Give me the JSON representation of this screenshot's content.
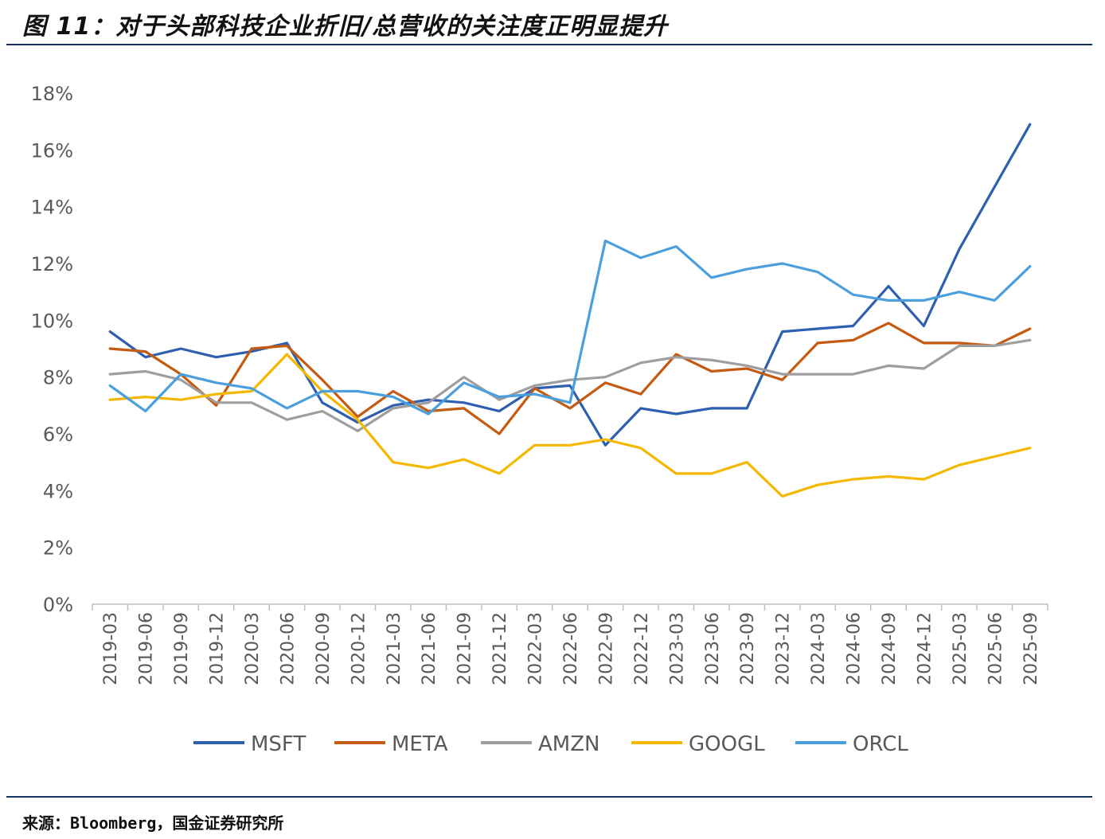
{
  "title": "图 11：对于头部科技企业折旧/总营收的关注度正明显提升",
  "source": "来源：Bloomberg，国金证券研究所",
  "chart_data": {
    "type": "line",
    "title": "",
    "xlabel": "",
    "ylabel": "",
    "ylim": [
      0,
      18
    ],
    "yticks": [
      0,
      2,
      4,
      6,
      8,
      10,
      12,
      14,
      16,
      18
    ],
    "ytick_labels": [
      "0%",
      "2%",
      "4%",
      "6%",
      "8%",
      "10%",
      "12%",
      "14%",
      "16%",
      "18%"
    ],
    "grid": false,
    "legend_position": "bottom",
    "categories": [
      "2019-03",
      "2019-06",
      "2019-09",
      "2019-12",
      "2020-03",
      "2020-06",
      "2020-09",
      "2020-12",
      "2021-03",
      "2021-06",
      "2021-09",
      "2021-12",
      "2022-03",
      "2022-06",
      "2022-09",
      "2022-12",
      "2023-03",
      "2023-06",
      "2023-09",
      "2023-12",
      "2024-03",
      "2024-06",
      "2024-09",
      "2024-12",
      "2025-03",
      "2025-06",
      "2025-09"
    ],
    "series": [
      {
        "name": "MSFT",
        "color": "#2e5fb0",
        "values": [
          9.6,
          8.7,
          9.0,
          8.7,
          8.9,
          9.2,
          7.1,
          6.4,
          7.0,
          7.2,
          7.1,
          6.8,
          7.6,
          7.7,
          5.6,
          6.9,
          6.7,
          6.9,
          6.9,
          9.6,
          9.7,
          9.8,
          11.2,
          9.8,
          12.5,
          14.7,
          16.9
        ]
      },
      {
        "name": "META",
        "color": "#c55a11",
        "values": [
          9.0,
          8.9,
          8.1,
          7.0,
          9.0,
          9.1,
          7.9,
          6.6,
          7.5,
          6.8,
          6.9,
          6.0,
          7.6,
          6.9,
          7.8,
          7.4,
          8.8,
          8.2,
          8.3,
          7.9,
          9.2,
          9.3,
          9.9,
          9.2,
          9.2,
          9.1,
          9.7
        ]
      },
      {
        "name": "AMZN",
        "color": "#9e9e9e",
        "values": [
          8.1,
          8.2,
          7.9,
          7.1,
          7.1,
          6.5,
          6.8,
          6.1,
          6.9,
          7.1,
          8.0,
          7.2,
          7.7,
          7.9,
          8.0,
          8.5,
          8.7,
          8.6,
          8.4,
          8.1,
          8.1,
          8.1,
          8.4,
          8.3,
          9.1,
          9.1,
          9.3
        ]
      },
      {
        "name": "GOOGL",
        "color": "#f5b800",
        "values": [
          7.2,
          7.3,
          7.2,
          7.4,
          7.5,
          8.8,
          7.5,
          6.5,
          5.0,
          4.8,
          5.1,
          4.6,
          5.6,
          5.6,
          5.8,
          5.5,
          4.6,
          4.6,
          5.0,
          3.8,
          4.2,
          4.4,
          4.5,
          4.4,
          4.9,
          5.2,
          5.5
        ]
      },
      {
        "name": "ORCL",
        "color": "#4a9fdc",
        "values": [
          7.7,
          6.8,
          8.1,
          7.8,
          7.6,
          6.9,
          7.5,
          7.5,
          7.3,
          6.7,
          7.8,
          7.3,
          7.4,
          7.1,
          12.8,
          12.2,
          12.6,
          11.5,
          11.8,
          12.0,
          11.7,
          10.9,
          10.7,
          10.7,
          11.0,
          10.7,
          11.9
        ]
      }
    ]
  }
}
